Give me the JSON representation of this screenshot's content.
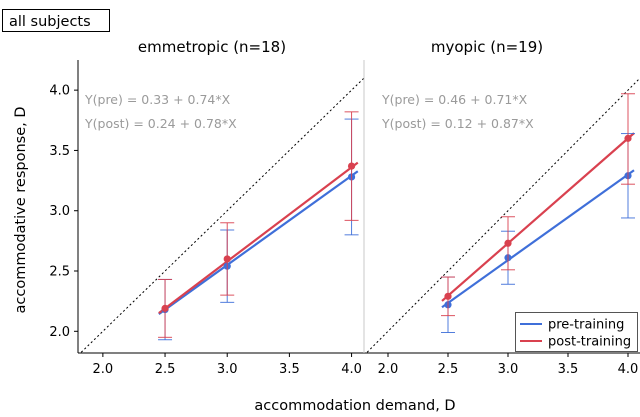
{
  "figure": {
    "tag": "all subjects",
    "xlabel": "accommodation demand, D",
    "ylabel": "accommodative response, D"
  },
  "colors": {
    "pre": "#3f6fd9",
    "post": "#d9414f",
    "identity": "#000000"
  },
  "legend": {
    "placement": "bottom-right",
    "pre_label": "pre-training",
    "post_label": "post-training"
  },
  "chart_data": [
    {
      "type": "scatter",
      "title": "emmetropic (n=18)",
      "xlim": [
        1.8,
        4.1
      ],
      "ylim": [
        1.82,
        4.25
      ],
      "xticks": [
        "2.0",
        "2.5",
        "3.0",
        "3.5",
        "4.0"
      ],
      "yticks": [
        "2.0",
        "2.5",
        "3.0",
        "3.5",
        "4.0"
      ],
      "identity_line": true,
      "equations": {
        "pre": "Y(pre) = 0.33 + 0.74*X",
        "post": "Y(post) = 0.24 + 0.78*X"
      },
      "fits": {
        "pre": {
          "intercept": 0.33,
          "slope": 0.74
        },
        "post": {
          "intercept": 0.24,
          "slope": 0.78
        }
      },
      "series": [
        {
          "name": "pre-training",
          "x": [
            2.5,
            3.0,
            4.0
          ],
          "y": [
            2.18,
            2.54,
            3.28
          ],
          "err_low": [
            1.93,
            2.24,
            2.8
          ],
          "err_high": [
            2.43,
            2.84,
            3.76
          ]
        },
        {
          "name": "post-training",
          "x": [
            2.5,
            3.0,
            4.0
          ],
          "y": [
            2.19,
            2.6,
            3.37
          ],
          "err_low": [
            1.95,
            2.3,
            2.92
          ],
          "err_high": [
            2.43,
            2.9,
            3.82
          ]
        }
      ]
    },
    {
      "type": "scatter",
      "title": "myopic (n=19)",
      "xlim": [
        1.8,
        4.1
      ],
      "ylim": [
        1.82,
        4.25
      ],
      "xticks": [
        "2.0",
        "2.5",
        "3.0",
        "3.5",
        "4.0"
      ],
      "yticks": [],
      "identity_line": true,
      "equations": {
        "pre": "Y(pre) = 0.46 + 0.71*X",
        "post": "Y(post) = 0.12 + 0.87*X"
      },
      "fits": {
        "pre": {
          "intercept": 0.46,
          "slope": 0.71
        },
        "post": {
          "intercept": 0.12,
          "slope": 0.87
        }
      },
      "series": [
        {
          "name": "pre-training",
          "x": [
            2.5,
            3.0,
            4.0
          ],
          "y": [
            2.22,
            2.61,
            3.29
          ],
          "err_low": [
            1.99,
            2.39,
            2.94
          ],
          "err_high": [
            2.45,
            2.83,
            3.64
          ]
        },
        {
          "name": "post-training",
          "x": [
            2.5,
            3.0,
            4.0
          ],
          "y": [
            2.29,
            2.73,
            3.6
          ],
          "err_low": [
            2.13,
            2.51,
            3.22
          ],
          "err_high": [
            2.45,
            2.95,
            3.97
          ]
        }
      ]
    }
  ]
}
